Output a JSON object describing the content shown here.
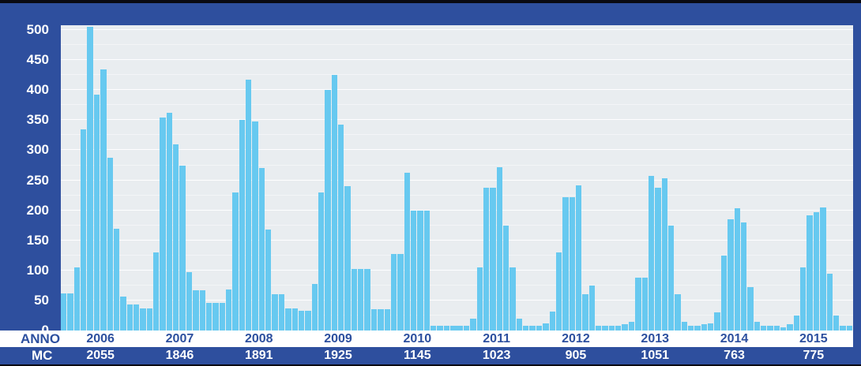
{
  "colors": {
    "frame_blue": "#2e4f9e",
    "plot_background": "#e9edf0",
    "bar_fill": "#67c9f0",
    "gridline_major": "#ffffff",
    "gridline_minor": "#ffffff",
    "label_blue": "#2d509f",
    "label_white": "#ffffff",
    "edge_black": "#0a0a12"
  },
  "chart_data": {
    "type": "bar",
    "title": "",
    "xlabel": "ANNO",
    "ylabel": "",
    "ylim": [
      0,
      500
    ],
    "ytick_interval": 50,
    "gridline_interval": 25,
    "legend": "none",
    "grid": "on",
    "y_ticks": [
      "500",
      "450",
      "400",
      "350",
      "300",
      "250",
      "200",
      "150",
      "100",
      "50",
      "0"
    ],
    "row_labels": {
      "anno": "ANNO",
      "mc": "MC"
    },
    "years": [
      {
        "year": "2006",
        "mc": "2055",
        "monthly": [
          62,
          62,
          105,
          335,
          505,
          393,
          435,
          288,
          170,
          57,
          43,
          43
        ]
      },
      {
        "year": "2007",
        "mc": "1846",
        "monthly": [
          37,
          37,
          130,
          355,
          362,
          310,
          275,
          97,
          67,
          67,
          46,
          46
        ]
      },
      {
        "year": "2008",
        "mc": "1891",
        "monthly": [
          46,
          68,
          230,
          350,
          417,
          348,
          270,
          168,
          60,
          60,
          37,
          37
        ]
      },
      {
        "year": "2009",
        "mc": "1925",
        "monthly": [
          33,
          33,
          77,
          230,
          400,
          425,
          342,
          240,
          103,
          103,
          103,
          35
        ]
      },
      {
        "year": "2010",
        "mc": "1145",
        "monthly": [
          35,
          35,
          127,
          127,
          262,
          200,
          200,
          200,
          8,
          8,
          8,
          8
        ]
      },
      {
        "year": "2011",
        "mc": "1023",
        "monthly": [
          8,
          8,
          20,
          105,
          238,
          238,
          272,
          175,
          105,
          20,
          8,
          8
        ]
      },
      {
        "year": "2012",
        "mc": "905",
        "monthly": [
          8,
          12,
          32,
          130,
          222,
          222,
          242,
          60,
          75,
          8,
          8,
          8
        ]
      },
      {
        "year": "2013",
        "mc": "1051",
        "monthly": [
          8,
          10,
          15,
          88,
          88,
          257,
          238,
          253,
          175,
          60,
          15,
          8
        ]
      },
      {
        "year": "2014",
        "mc": "763",
        "monthly": [
          8,
          10,
          12,
          30,
          125,
          185,
          203,
          180,
          72,
          15,
          8,
          8
        ]
      },
      {
        "year": "2015",
        "mc": "775",
        "monthly": [
          8,
          5,
          10,
          25,
          105,
          192,
          197,
          205,
          95,
          25,
          8,
          8
        ]
      }
    ]
  }
}
